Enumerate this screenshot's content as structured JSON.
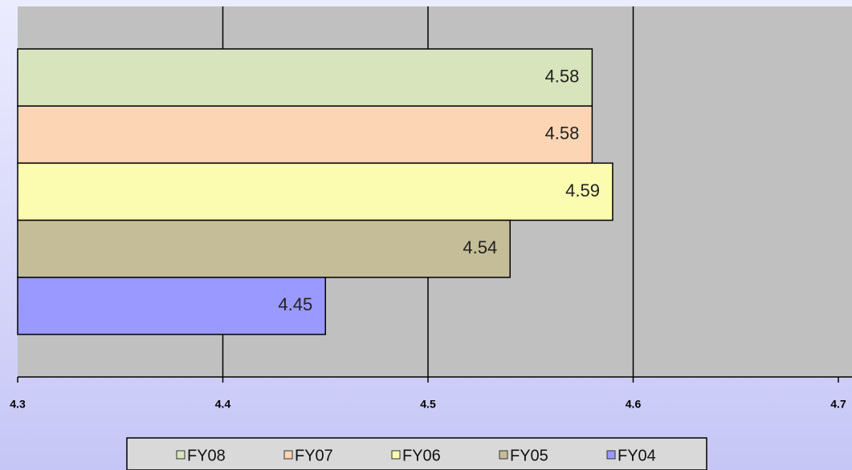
{
  "chart_data": {
    "type": "barh",
    "series": [
      {
        "name": "FY08",
        "color": "#d8e4bc",
        "values": [
          4.58
        ]
      },
      {
        "name": "FY07",
        "color": "#fcd5b4",
        "values": [
          4.58
        ]
      },
      {
        "name": "FY06",
        "color": "#fcfcb0",
        "values": [
          4.59
        ]
      },
      {
        "name": "FY05",
        "color": "#c4bd97",
        "values": [
          4.54
        ]
      },
      {
        "name": "FY04",
        "color": "#9999ff",
        "values": [
          4.45
        ]
      }
    ],
    "xlim": [
      4.3,
      4.7
    ],
    "xticks": [
      4.3,
      4.4,
      4.5,
      4.6,
      4.7
    ],
    "grid": true,
    "legend": "bottom"
  }
}
